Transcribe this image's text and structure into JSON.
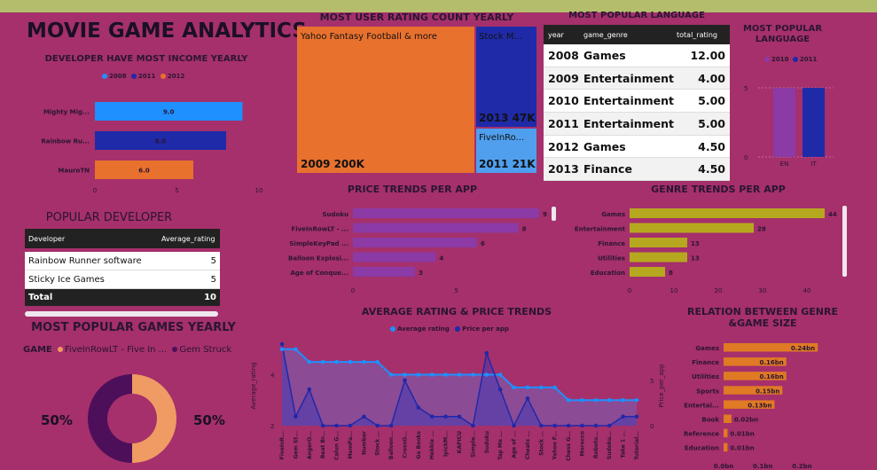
{
  "dashboard_title": "MOVIE GAME ANALYTICS",
  "colors": {
    "c2008": "#1e90ff",
    "c2011": "#1f2aa8",
    "c2012": "#e8712e",
    "purple": "#8b3aa6",
    "olive": "#b6a81e",
    "orange": "#e07a24"
  },
  "developer_income": {
    "title": "DEVELOPER HAVE MOST INCOME YEARLY",
    "legend": [
      "2008",
      "2011",
      "2012"
    ],
    "chart_data": {
      "type": "bar",
      "categories": [
        "Mighty Mig...",
        "Rainbow Ru...",
        "MauroTN"
      ],
      "values": [
        9.0,
        8.0,
        6.0
      ],
      "series_year": [
        "2008",
        "2011",
        "2012"
      ],
      "ticks": [
        "0",
        "5",
        "10"
      ],
      "xlim": [
        0,
        10
      ]
    }
  },
  "treemap": {
    "title": "MOST USER RATING COUNT YEARLY",
    "cells": [
      {
        "top": "Yahoo Fantasy Football & more",
        "bottom": "2009 200K"
      },
      {
        "top": "Stock M...",
        "bottom": "2013 47K"
      },
      {
        "top": "FiveInRo...",
        "bottom": "2011 21K"
      }
    ]
  },
  "language_table": {
    "title": "MOST POPULAR LANGUAGE",
    "headers": [
      "year",
      "game_genre",
      "total_rating"
    ],
    "rows": [
      [
        "2008",
        "Games",
        "12.00"
      ],
      [
        "2009",
        "Entertainment",
        "4.00"
      ],
      [
        "2010",
        "Entertainment",
        "5.00"
      ],
      [
        "2011",
        "Entertainment",
        "5.00"
      ],
      [
        "2012",
        "Games",
        "4.50"
      ],
      [
        "2013",
        "Finance",
        "4.50"
      ]
    ]
  },
  "language_chart": {
    "title": "MOST POPULAR LANGUAGE",
    "legend": [
      "2010",
      "2011"
    ],
    "chart_data": {
      "type": "bar",
      "categories": [
        "EN",
        "IT"
      ],
      "values": [
        5,
        5
      ],
      "ticks": [
        "0",
        "5"
      ],
      "ylim": [
        0,
        5
      ]
    }
  },
  "price_trends": {
    "title": "PRICE TRENDS PER APP",
    "chart_data": {
      "type": "bar",
      "categories": [
        "Sudoku",
        "FiveInRowLT - ...",
        "SimpleKeyPad ...",
        "Balloon Explosi...",
        "Age of Conque..."
      ],
      "values": [
        9,
        8,
        6,
        4,
        3
      ],
      "ticks": [
        "0",
        "5"
      ],
      "xlim": [
        0,
        9
      ]
    }
  },
  "genre_trends": {
    "title": "GENRE TRENDS PER APP",
    "chart_data": {
      "type": "bar",
      "categories": [
        "Games",
        "Entertainment",
        "Finance",
        "Utilities",
        "Education"
      ],
      "values": [
        44,
        28,
        13,
        13,
        8
      ],
      "ticks": [
        "0",
        "10",
        "20",
        "30",
        "40"
      ],
      "xlim": [
        0,
        44
      ]
    }
  },
  "popular_developer": {
    "title": "POPULAR DEVELOPER",
    "headers": [
      "Developer",
      "Average_rating"
    ],
    "rows": [
      [
        "Rainbow Runner software",
        "5"
      ],
      [
        "Sticky Ice Games",
        "5"
      ]
    ],
    "total": [
      "Total",
      "10"
    ]
  },
  "popular_games": {
    "title": "MOST POPULAR GAMES YEARLY",
    "legend_label": "GAME",
    "legend": [
      "FiveInRowLT - Five In ...",
      "Gem Struck"
    ],
    "chart_data": {
      "type": "pie",
      "labels": [
        "FiveInRowLT - Five In ...",
        "Gem Struck"
      ],
      "values": [
        50,
        50
      ],
      "pct_labels": [
        "50%",
        "50%"
      ]
    }
  },
  "avg_rating_price": {
    "title": "AVERAGE RATING & PRICE TRENDS",
    "legend": [
      "Average rating",
      "Price per app"
    ],
    "ylabel_left": "Average_rating",
    "ylabel_right": "Price_per_app",
    "left_ticks": [
      "2",
      "4"
    ],
    "right_ticks": [
      "0",
      "5"
    ],
    "chart_data": {
      "type": "area",
      "x": [
        "FiveInR...",
        "Gem St...",
        "AngerO...",
        "Beat Br...",
        "Calun G...",
        "MemPa...",
        "Number",
        "Stock ...",
        "Balloon...",
        "CrossO...",
        "Go Books",
        "Hekkie ...",
        "IpickM...",
        "KAPICU",
        "Simple...",
        "Sudoku",
        "Tap Me ...",
        "Age of ...",
        "Cheats ...",
        "Stock ...",
        "Yahoo F...",
        "Chess G...",
        "Morocco",
        "Roboto...",
        "Sudoku...",
        "Take 1 ...",
        "Tutorial..."
      ],
      "series": [
        {
          "name": "Average rating",
          "values": [
            5,
            5,
            4.5,
            4.5,
            4.5,
            4.5,
            4.5,
            4.5,
            4,
            4,
            4,
            4,
            4,
            4,
            4,
            4,
            4,
            3.5,
            3.5,
            3.5,
            3.5,
            3,
            3,
            3,
            3,
            3,
            3
          ]
        },
        {
          "name": "Price per app",
          "values": [
            9,
            1,
            4,
            0,
            0,
            0,
            1,
            0,
            0,
            5,
            2,
            1,
            1,
            1,
            0,
            8,
            4,
            0,
            3,
            0,
            0,
            0,
            0,
            0,
            0,
            1,
            1
          ]
        }
      ],
      "ylim_left": [
        2,
        5.2
      ],
      "ylim_right": [
        0,
        9
      ]
    }
  },
  "genre_size": {
    "title": "RELATION BETWEEN GENRE &GAME SIZE",
    "chart_data": {
      "type": "bar",
      "categories": [
        "Games",
        "Finance",
        "Utilities",
        "Sports",
        "Entertai...",
        "Book",
        "Reference",
        "Education"
      ],
      "values": [
        0.24,
        0.16,
        0.16,
        0.15,
        0.13,
        0.02,
        0.01,
        0.01
      ],
      "value_labels": [
        "0.24bn",
        "0.16bn",
        "0.16bn",
        "0.15bn",
        "0.13bn",
        "0.02bn",
        "0.01bn",
        "0.01bn"
      ],
      "ticks": [
        "0.0bn",
        "0.1bn",
        "0.2bn"
      ],
      "xlim": [
        0,
        0.26
      ]
    }
  }
}
